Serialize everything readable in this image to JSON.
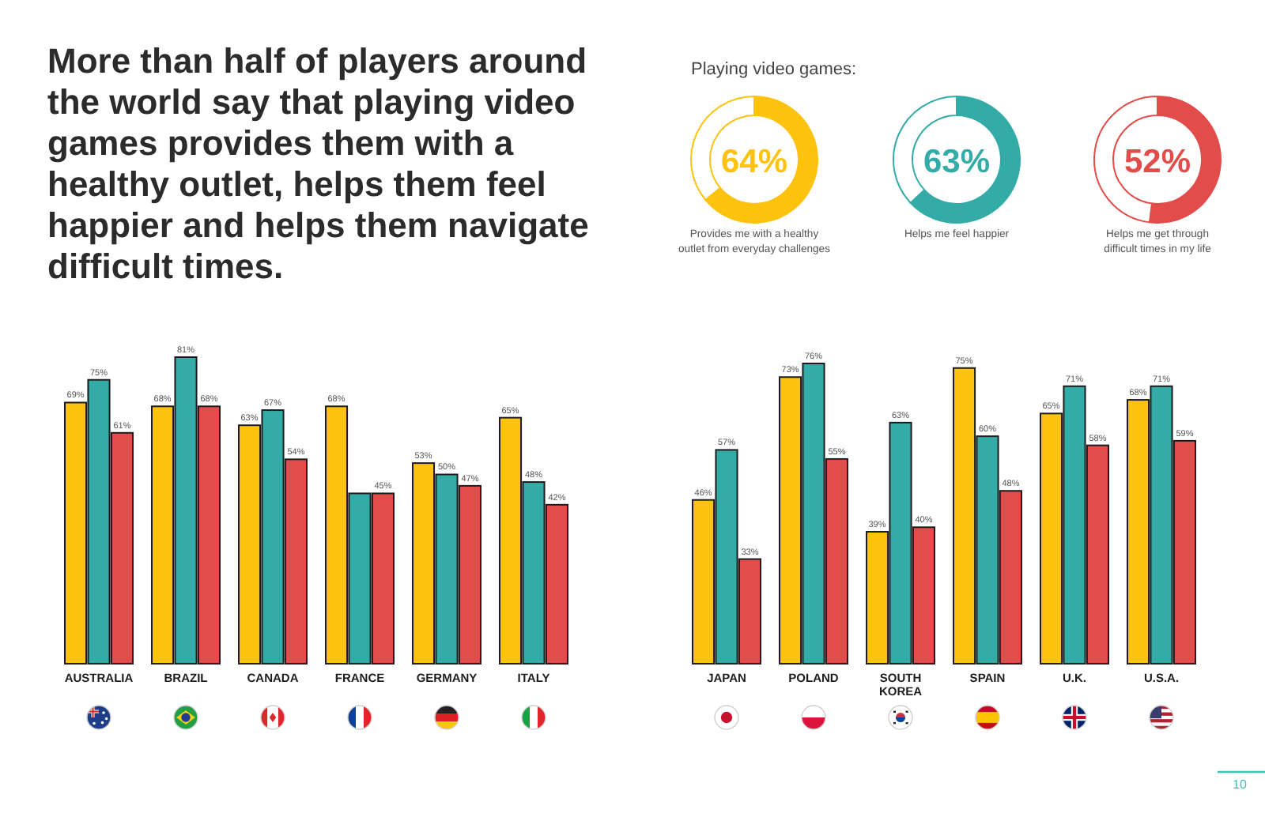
{
  "chart_data": [
    {
      "type": "bar",
      "title": "More than half of players around the world say that playing video games provides them with a healthy outlet, helps them feel happier and helps them navigate difficult times.",
      "categories": [
        "AUSTRALIA",
        "BRAZIL",
        "CANADA",
        "FRANCE",
        "GERMANY",
        "ITALY"
      ],
      "series": [
        {
          "color": "#fdc30f",
          "values": [
            69,
            68,
            63,
            68,
            53,
            65
          ],
          "value_labels": [
            "69%",
            "68%",
            "63%",
            "68%",
            "53%",
            "65%"
          ]
        },
        {
          "color": "#33aca8",
          "values": [
            75,
            81,
            67,
            45,
            50,
            48
          ],
          "value_labels": [
            "75%",
            "81%",
            "67%",
            null,
            "50%",
            "48%"
          ]
        },
        {
          "color": "#e24c4a",
          "values": [
            61,
            68,
            54,
            45,
            47,
            42
          ],
          "value_labels": [
            "61%",
            "68%",
            "54%",
            "45%",
            "47%",
            "42%"
          ]
        }
      ],
      "ylim": [
        0,
        81
      ],
      "tick_labels": "x"
    },
    {
      "type": "donut",
      "title": "Playing video games:",
      "categories": [
        "Provides me with a healthy outlet from everyday challenges",
        null
      ],
      "values": [
        64,
        36
      ],
      "colors": [
        "#fdc30f",
        "#ffffff"
      ],
      "value_labels": [
        "64%",
        null
      ]
    },
    {
      "type": "donut",
      "categories": [
        "Helps me feel happier",
        null
      ],
      "values": [
        63,
        37
      ],
      "colors": [
        "#33aca8",
        "#ffffff"
      ],
      "value_labels": [
        "63%",
        null
      ]
    },
    {
      "type": "donut",
      "categories": [
        "Helps me get through difficult times in my life",
        null
      ],
      "values": [
        52,
        48
      ],
      "colors": [
        "#e24c4a",
        "#ffffff"
      ],
      "value_labels": [
        "52%",
        null
      ]
    },
    {
      "type": "bar",
      "categories": [
        "JAPAN",
        "POLAND",
        "SOUTH KOREA",
        "SPAIN",
        "U.K.",
        "U.S.A."
      ],
      "series": [
        {
          "color": "#fdc30f",
          "values": [
            46,
            73,
            39,
            75,
            65,
            68
          ],
          "value_labels": [
            "46%",
            "73%",
            "39%",
            "75%",
            "65%",
            "68%"
          ]
        },
        {
          "color": "#33aca8",
          "values": [
            57,
            76,
            63,
            60,
            71,
            71
          ],
          "value_labels": [
            "57%",
            "76%",
            "63%",
            "60%",
            "71%",
            "71%"
          ]
        },
        {
          "color": "#e24c4a",
          "values": [
            33,
            55,
            40,
            48,
            58,
            59
          ],
          "value_labels": [
            "33%",
            "55%",
            "40%",
            "48%",
            "58%",
            "59%"
          ]
        }
      ],
      "ylim": [
        10,
        76
      ],
      "tick_labels": "x",
      "annotations": [
        "10"
      ]
    }
  ]
}
